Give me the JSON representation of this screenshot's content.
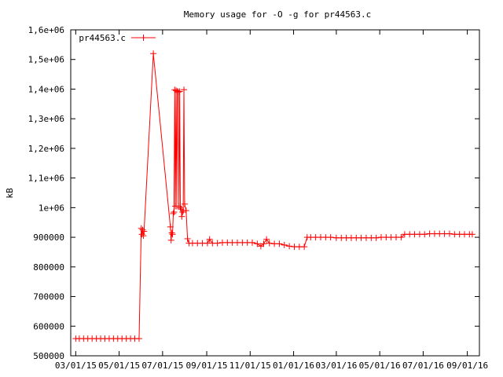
{
  "chart_data": {
    "type": "line",
    "title": "Memory usage for -O -g for pr44563.c",
    "xlabel": "",
    "ylabel": "kB",
    "xlim": [
      "2015-02-22",
      "2016-09-18"
    ],
    "ylim": [
      500000,
      1600000
    ],
    "x_ticks": [
      "03/01/15",
      "05/01/15",
      "07/01/15",
      "09/01/15",
      "11/01/15",
      "01/01/16",
      "03/01/16",
      "05/01/16",
      "07/01/16",
      "09/01/16"
    ],
    "x_tick_dates": [
      "2015-03-01",
      "2015-05-01",
      "2015-07-01",
      "2015-09-01",
      "2015-11-01",
      "2016-01-01",
      "2016-03-01",
      "2016-05-01",
      "2016-07-01",
      "2016-09-01"
    ],
    "y_ticks": [
      500000,
      600000,
      700000,
      800000,
      900000,
      1000000,
      1100000,
      1200000,
      1300000,
      1400000,
      1500000,
      1600000
    ],
    "y_tick_labels": [
      "500000",
      "600000",
      "700000",
      "800000",
      "900000",
      "1e+06",
      "1,1e+06",
      "1,2e+06",
      "1,3e+06",
      "1,4e+06",
      "1,5e+06",
      "1,6e+06"
    ],
    "grid": false,
    "legend_position": "top-left",
    "series": [
      {
        "name": "pr44563.c",
        "color": "#ff0000",
        "points": [
          [
            "2015-03-01",
            558000
          ],
          [
            "2015-03-06",
            558000
          ],
          [
            "2015-03-12",
            558000
          ],
          [
            "2015-03-18",
            558000
          ],
          [
            "2015-03-24",
            558000
          ],
          [
            "2015-03-30",
            558000
          ],
          [
            "2015-04-05",
            558000
          ],
          [
            "2015-04-11",
            558000
          ],
          [
            "2015-04-17",
            558000
          ],
          [
            "2015-04-23",
            558000
          ],
          [
            "2015-04-29",
            558000
          ],
          [
            "2015-05-05",
            558000
          ],
          [
            "2015-05-11",
            558000
          ],
          [
            "2015-05-17",
            558000
          ],
          [
            "2015-05-23",
            558000
          ],
          [
            "2015-05-29",
            558000
          ],
          [
            "2015-06-01",
            930000
          ],
          [
            "2015-06-02",
            910000
          ],
          [
            "2015-06-03",
            925000
          ],
          [
            "2015-06-04",
            905000
          ],
          [
            "2015-06-05",
            920000
          ],
          [
            "2015-06-18",
            1520000
          ],
          [
            "2015-07-12",
            935000
          ],
          [
            "2015-07-13",
            890000
          ],
          [
            "2015-07-14",
            915000
          ],
          [
            "2015-07-15",
            910000
          ],
          [
            "2015-07-16",
            980000
          ],
          [
            "2015-07-17",
            985000
          ],
          [
            "2015-07-18",
            1398000
          ],
          [
            "2015-07-19",
            1005000
          ],
          [
            "2015-07-20",
            1395000
          ],
          [
            "2015-07-21",
            1005000
          ],
          [
            "2015-07-22",
            1393000
          ],
          [
            "2015-07-23",
            1390000
          ],
          [
            "2015-07-24",
            1005000
          ],
          [
            "2015-07-25",
            1392000
          ],
          [
            "2015-07-26",
            1000000
          ],
          [
            "2015-07-27",
            995000
          ],
          [
            "2015-07-28",
            970000
          ],
          [
            "2015-07-29",
            985000
          ],
          [
            "2015-07-30",
            990000
          ],
          [
            "2015-07-31",
            1398000
          ],
          [
            "2015-08-01",
            1012000
          ],
          [
            "2015-08-03",
            990000
          ],
          [
            "2015-08-05",
            895000
          ],
          [
            "2015-08-07",
            880000
          ],
          [
            "2015-08-12",
            880000
          ],
          [
            "2015-08-19",
            880000
          ],
          [
            "2015-08-26",
            880000
          ],
          [
            "2015-09-02",
            880000
          ],
          [
            "2015-09-05",
            893000
          ],
          [
            "2015-09-09",
            880000
          ],
          [
            "2015-09-16",
            880000
          ],
          [
            "2015-09-23",
            882000
          ],
          [
            "2015-09-30",
            882000
          ],
          [
            "2015-10-07",
            882000
          ],
          [
            "2015-10-14",
            882000
          ],
          [
            "2015-10-21",
            882000
          ],
          [
            "2015-10-28",
            882000
          ],
          [
            "2015-11-04",
            882000
          ],
          [
            "2015-11-11",
            878000
          ],
          [
            "2015-11-16",
            870000
          ],
          [
            "2015-11-20",
            878000
          ],
          [
            "2015-11-24",
            893000
          ],
          [
            "2015-11-28",
            880000
          ],
          [
            "2015-12-05",
            878000
          ],
          [
            "2015-12-12",
            878000
          ],
          [
            "2015-12-19",
            874000
          ],
          [
            "2015-12-26",
            870000
          ],
          [
            "2016-01-02",
            868000
          ],
          [
            "2016-01-09",
            868000
          ],
          [
            "2016-01-16",
            868000
          ],
          [
            "2016-01-20",
            900000
          ],
          [
            "2016-01-25",
            900000
          ],
          [
            "2016-02-01",
            900000
          ],
          [
            "2016-02-08",
            900000
          ],
          [
            "2016-02-15",
            900000
          ],
          [
            "2016-02-22",
            900000
          ],
          [
            "2016-03-01",
            898000
          ],
          [
            "2016-03-08",
            898000
          ],
          [
            "2016-03-15",
            898000
          ],
          [
            "2016-03-22",
            898000
          ],
          [
            "2016-03-29",
            898000
          ],
          [
            "2016-04-05",
            898000
          ],
          [
            "2016-04-12",
            898000
          ],
          [
            "2016-04-19",
            898000
          ],
          [
            "2016-04-26",
            898000
          ],
          [
            "2016-05-03",
            900000
          ],
          [
            "2016-05-10",
            900000
          ],
          [
            "2016-05-17",
            900000
          ],
          [
            "2016-05-24",
            900000
          ],
          [
            "2016-05-31",
            900000
          ],
          [
            "2016-06-05",
            910000
          ],
          [
            "2016-06-12",
            910000
          ],
          [
            "2016-06-19",
            910000
          ],
          [
            "2016-06-26",
            910000
          ],
          [
            "2016-07-03",
            910000
          ],
          [
            "2016-07-10",
            912000
          ],
          [
            "2016-07-17",
            912000
          ],
          [
            "2016-07-24",
            912000
          ],
          [
            "2016-07-31",
            912000
          ],
          [
            "2016-08-07",
            912000
          ],
          [
            "2016-08-14",
            910000
          ],
          [
            "2016-08-21",
            910000
          ],
          [
            "2016-08-28",
            910000
          ],
          [
            "2016-09-04",
            910000
          ],
          [
            "2016-09-08",
            910000
          ]
        ]
      }
    ]
  }
}
